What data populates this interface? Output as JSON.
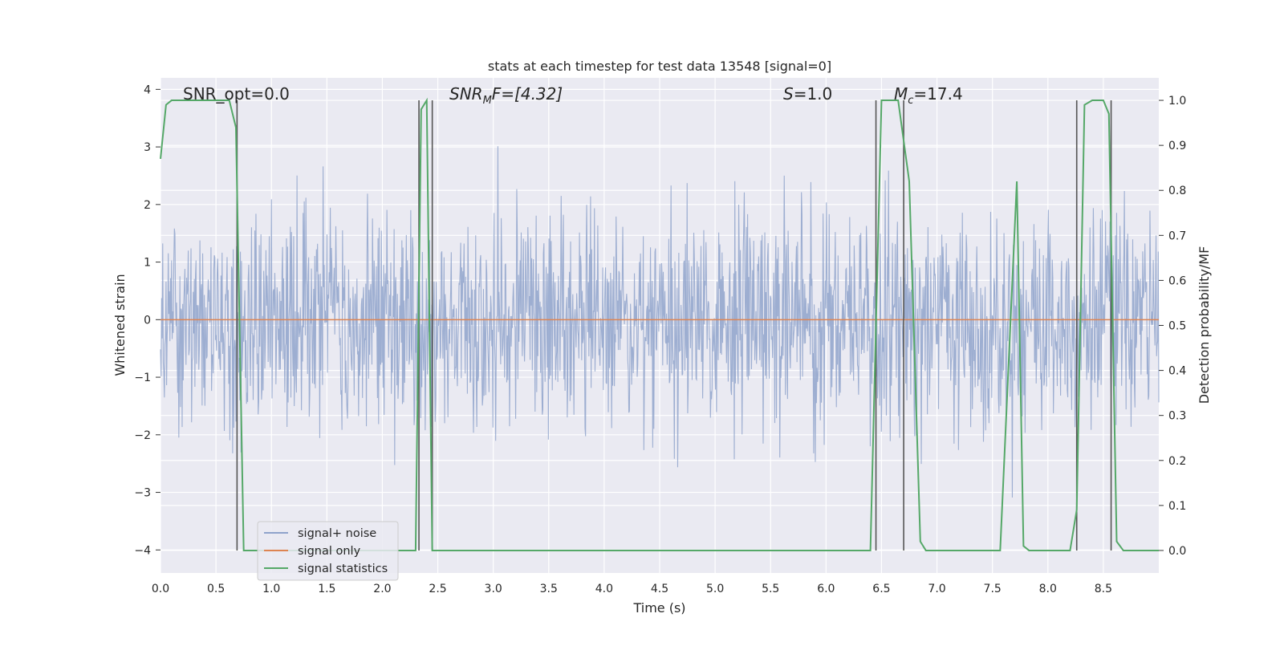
{
  "chart_data": {
    "type": "line",
    "title": "stats at each timestep for test data 13548 [signal=0]",
    "xlabel": "Time (s)",
    "ylabel_left": "Whitened strain",
    "ylabel_right": "Detection probability/MF",
    "xlim": [
      0,
      9.0
    ],
    "ylim_left": [
      -4.4,
      4.2
    ],
    "ylim_right": [
      -0.05,
      1.05
    ],
    "grid": true,
    "legend_position": "lower-left",
    "x_ticks": [
      "0.0",
      "0.5",
      "1.0",
      "1.5",
      "2.0",
      "2.5",
      "3.0",
      "3.5",
      "4.0",
      "4.5",
      "5.0",
      "5.5",
      "6.0",
      "6.5",
      "7.0",
      "7.5",
      "8.0",
      "8.5"
    ],
    "y_ticks_left": [
      "−4",
      "−3",
      "−2",
      "−1",
      "0",
      "1",
      "2",
      "3",
      "4"
    ],
    "y_ticks_right": [
      "0.0",
      "0.1",
      "0.2",
      "0.3",
      "0.4",
      "0.5",
      "0.6",
      "0.7",
      "0.8",
      "0.9",
      "1.0"
    ],
    "annotations": {
      "snr_opt": "SNR_opt=0.0",
      "snr_mf_prefix": "SNR",
      "snr_mf_sub": "M",
      "snr_mf_suffix": "F=[4.32]",
      "s_symbol": "S",
      "s_value": "=1.0",
      "mc_symbol": "M",
      "mc_sub": "c",
      "mc_value": "=17.4"
    },
    "series": [
      {
        "name": "signal+ noise",
        "color": "#8fa3cb",
        "description_of_shape": "whitened noise, roughly symmetric about 0, mostly within ±2, spikes to about ±3.5",
        "amplitude_envelope": 2.0,
        "peak_max": 3.55,
        "peak_min": -4.0
      },
      {
        "name": "signal only",
        "color": "#dd8452",
        "x": [
          0.0,
          9.0
        ],
        "y": [
          0.0,
          0.0
        ]
      },
      {
        "name": "signal statistics",
        "color": "#55a868",
        "axis": "right",
        "x": [
          0.0,
          0.05,
          0.1,
          0.62,
          0.68,
          0.75,
          8.2,
          2.3,
          2.35,
          2.4,
          2.45,
          2.5,
          2.55,
          6.4,
          6.5,
          6.65,
          6.75,
          6.85,
          6.9,
          7.57,
          7.72,
          7.78,
          7.83,
          8.18,
          8.26,
          8.33,
          8.4,
          8.5,
          8.55,
          8.62,
          8.68,
          9.0
        ],
        "y": [
          0.87,
          0.99,
          1.0,
          1.0,
          0.94,
          0.0,
          0.0,
          0.0,
          0.98,
          1.0,
          0.0,
          0.0,
          0.0,
          0.0,
          1.0,
          1.0,
          0.82,
          0.02,
          0.0,
          0.0,
          0.82,
          0.01,
          0.0,
          0.0,
          0.09,
          0.99,
          1.0,
          1.0,
          0.97,
          0.02,
          0.0,
          0.0
        ]
      }
    ],
    "vertical_markers_x": [
      0.69,
      2.33,
      2.45,
      6.45,
      6.7,
      8.26,
      8.57
    ],
    "legend_entries": [
      "signal+ noise",
      "signal only",
      "signal statistics"
    ]
  }
}
